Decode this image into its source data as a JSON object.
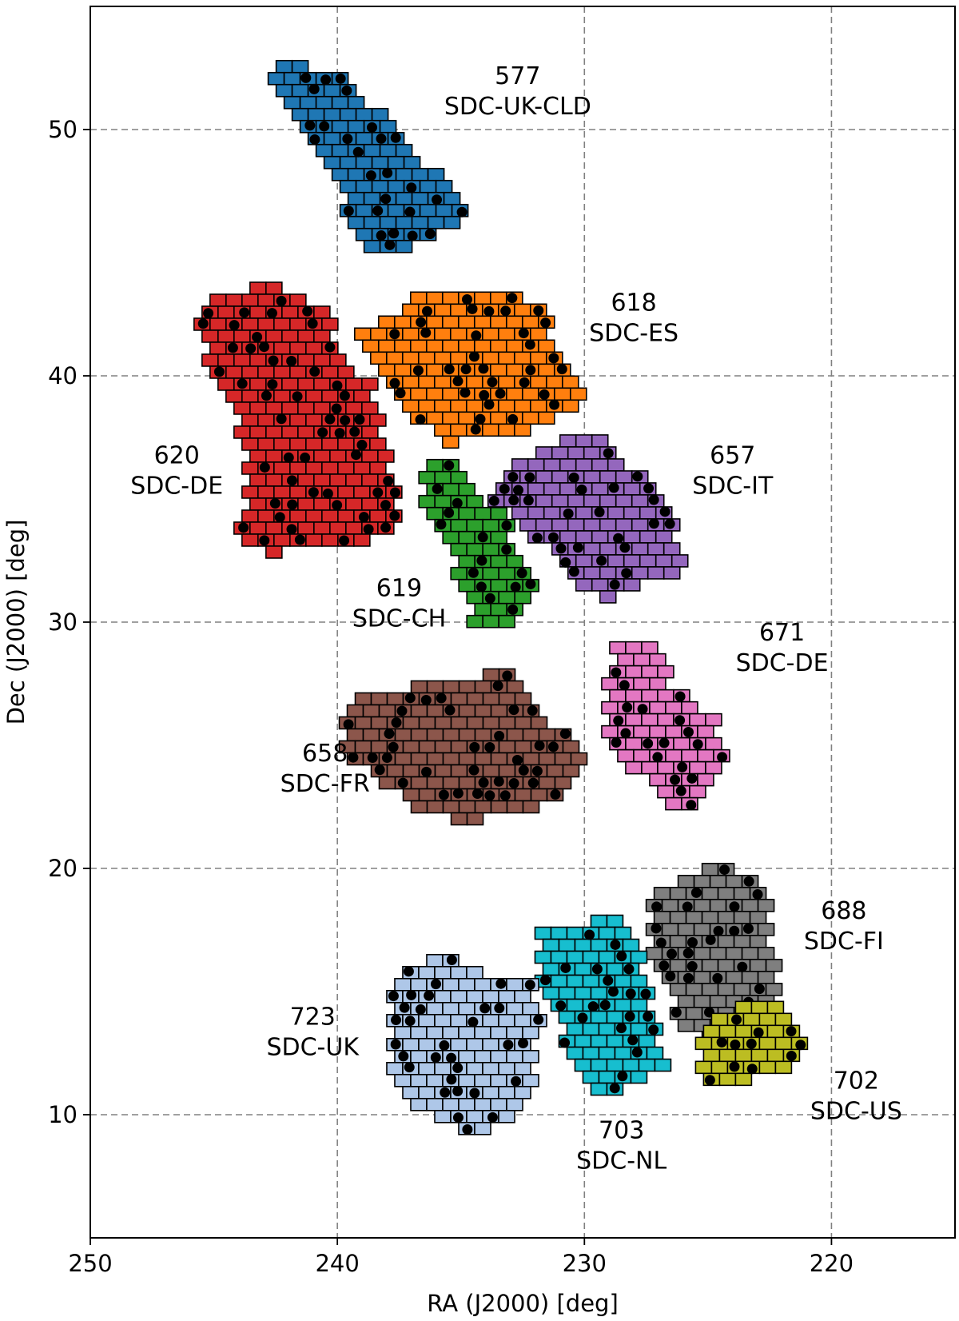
{
  "chart_data": {
    "type": "scatter",
    "title": "",
    "xlabel": "RA (J2000) [deg]",
    "ylabel": "Dec (J2000) [deg]",
    "xlim": [
      250,
      215
    ],
    "ylim": [
      5,
      55
    ],
    "x_inverted": true,
    "grid": true,
    "x_ticks": [
      {
        "value": 250,
        "label": "250"
      },
      {
        "value": 240,
        "label": "240"
      },
      {
        "value": 230,
        "label": "230"
      },
      {
        "value": 220,
        "label": "220"
      }
    ],
    "y_ticks": [
      {
        "value": 10,
        "label": "10"
      },
      {
        "value": 20,
        "label": "20"
      },
      {
        "value": 30,
        "label": "30"
      },
      {
        "value": 40,
        "label": "40"
      },
      {
        "value": 50,
        "label": "50"
      }
    ],
    "regions": [
      {
        "id": "577",
        "site": "SDC-UK-CLD",
        "color": "#1f77b4",
        "polygon": [
          [
            242.4,
            52.8
          ],
          [
            239.8,
            52.2
          ],
          [
            238.0,
            50.5
          ],
          [
            236.5,
            48.5
          ],
          [
            234.8,
            47.5
          ],
          [
            234.8,
            46.5
          ],
          [
            236.0,
            45.5
          ],
          [
            238.5,
            45.0
          ],
          [
            239.5,
            46.5
          ],
          [
            240.5,
            48.5
          ],
          [
            241.5,
            50.0
          ],
          [
            242.8,
            51.5
          ]
        ],
        "label_x": 232.7,
        "label_y": 51.2
      },
      {
        "id": "618",
        "site": "SDC-ES",
        "color": "#ff7f0e",
        "polygon": [
          [
            236.5,
            43.3
          ],
          [
            233.0,
            43.4
          ],
          [
            231.5,
            42.5
          ],
          [
            231.0,
            40.5
          ],
          [
            229.8,
            39.5
          ],
          [
            230.5,
            38.5
          ],
          [
            232.5,
            37.5
          ],
          [
            235.5,
            37.3
          ],
          [
            237.2,
            38.5
          ],
          [
            238.4,
            40.2
          ],
          [
            239.3,
            41.6
          ],
          [
            238.0,
            42.5
          ]
        ],
        "label_x": 228.0,
        "label_y": 42.0
      },
      {
        "id": "620",
        "site": "SDC-DE",
        "color": "#d62728",
        "polygon": [
          [
            245.8,
            42.8
          ],
          [
            242.9,
            43.8
          ],
          [
            240.5,
            42.9
          ],
          [
            240.0,
            41.2
          ],
          [
            238.5,
            39.6
          ],
          [
            238.0,
            37.5
          ],
          [
            237.5,
            34.6
          ],
          [
            238.2,
            33.5
          ],
          [
            240.5,
            33.0
          ],
          [
            242.5,
            32.8
          ],
          [
            244.0,
            33.5
          ],
          [
            243.5,
            36.0
          ],
          [
            244.2,
            38.5
          ],
          [
            245.3,
            40.5
          ]
        ],
        "label_x": 246.5,
        "label_y": 35.8
      },
      {
        "id": "619",
        "site": "SDC-CH",
        "color": "#2ca02c",
        "polygon": [
          [
            236.4,
            36.6
          ],
          [
            235.0,
            36.3
          ],
          [
            234.2,
            35.0
          ],
          [
            233.0,
            34.2
          ],
          [
            232.7,
            32.4
          ],
          [
            232.0,
            31.7
          ],
          [
            232.4,
            30.6
          ],
          [
            232.9,
            29.8
          ],
          [
            234.5,
            29.8
          ],
          [
            235.0,
            31.5
          ],
          [
            235.5,
            33.5
          ],
          [
            236.7,
            35.0
          ]
        ],
        "label_x": 237.5,
        "label_y": 30.4
      },
      {
        "id": "657",
        "site": "SDC-IT",
        "color": "#9467bd",
        "polygon": [
          [
            233.0,
            36.5
          ],
          [
            230.5,
            37.6
          ],
          [
            229.5,
            37.5
          ],
          [
            228.0,
            36.3
          ],
          [
            226.5,
            34.5
          ],
          [
            226.0,
            32.0
          ],
          [
            227.5,
            31.5
          ],
          [
            228.8,
            30.9
          ],
          [
            230.5,
            31.5
          ],
          [
            231.0,
            32.5
          ],
          [
            232.8,
            34.0
          ],
          [
            233.9,
            35.3
          ]
        ],
        "label_x": 224.0,
        "label_y": 35.8
      },
      {
        "id": "671",
        "site": "SDC-DE",
        "color": "#e377c2",
        "polygon": [
          [
            228.9,
            29.2
          ],
          [
            227.5,
            29.2
          ],
          [
            226.2,
            27.2
          ],
          [
            224.8,
            26.2
          ],
          [
            224.0,
            24.5
          ],
          [
            224.7,
            23.3
          ],
          [
            225.5,
            22.5
          ],
          [
            226.5,
            22.4
          ],
          [
            227.5,
            23.5
          ],
          [
            228.5,
            24.5
          ],
          [
            229.3,
            25.5
          ],
          [
            229.0,
            27.5
          ]
        ],
        "label_x": 222.0,
        "label_y": 28.6
      },
      {
        "id": "658",
        "site": "SDC-FR",
        "color": "#8c564b",
        "polygon": [
          [
            236.2,
            27.5
          ],
          [
            233.0,
            28.1
          ],
          [
            232.5,
            27.2
          ],
          [
            231.3,
            26.0
          ],
          [
            230.0,
            24.5
          ],
          [
            230.2,
            23.5
          ],
          [
            232.0,
            22.5
          ],
          [
            235.0,
            21.8
          ],
          [
            236.8,
            22.5
          ],
          [
            238.5,
            23.5
          ],
          [
            239.6,
            24.8
          ],
          [
            239.6,
            26.5
          ],
          [
            238.5,
            27.2
          ]
        ],
        "label_x": 240.5,
        "label_y": 23.7
      },
      {
        "id": "688",
        "site": "SDC-FI",
        "color": "#7f7f7f",
        "polygon": [
          [
            226.0,
            19.7
          ],
          [
            224.3,
            20.2
          ],
          [
            222.8,
            19.6
          ],
          [
            222.5,
            18.0
          ],
          [
            222.3,
            15.8
          ],
          [
            222.2,
            14.0
          ],
          [
            223.5,
            13.8
          ],
          [
            225.0,
            12.9
          ],
          [
            226.3,
            13.5
          ],
          [
            226.5,
            15.5
          ],
          [
            227.5,
            16.8
          ],
          [
            227.3,
            18.8
          ]
        ],
        "label_x": 219.5,
        "label_y": 17.3
      },
      {
        "id": "702",
        "site": "SDC-US",
        "color": "#bcbd22",
        "polygon": [
          [
            223.0,
            14.6
          ],
          [
            221.5,
            14.2
          ],
          [
            221.2,
            12.9
          ],
          [
            221.5,
            11.8
          ],
          [
            223.0,
            11.5
          ],
          [
            224.5,
            11.2
          ],
          [
            225.3,
            11.7
          ],
          [
            225.5,
            13.2
          ],
          [
            224.5,
            14.0
          ]
        ],
        "label_x": 219.0,
        "label_y": 10.4
      },
      {
        "id": "703",
        "site": "SDC-NL",
        "color": "#17becf",
        "polygon": [
          [
            231.7,
            17.7
          ],
          [
            230.0,
            17.8
          ],
          [
            228.5,
            18.1
          ],
          [
            227.6,
            17.0
          ],
          [
            227.6,
            15.8
          ],
          [
            227.1,
            14.0
          ],
          [
            226.8,
            12.0
          ],
          [
            227.8,
            11.5
          ],
          [
            228.5,
            10.8
          ],
          [
            229.8,
            10.8
          ],
          [
            230.8,
            12.5
          ],
          [
            231.2,
            14.5
          ],
          [
            232.0,
            16.0
          ]
        ],
        "label_x": 228.5,
        "label_y": 8.4
      },
      {
        "id": "723",
        "site": "SDC-UK",
        "color": "#aec7e8",
        "polygon": [
          [
            236.0,
            16.5
          ],
          [
            233.5,
            15.5
          ],
          [
            232.0,
            15.3
          ],
          [
            231.8,
            13.5
          ],
          [
            232.0,
            11.5
          ],
          [
            232.3,
            10.5
          ],
          [
            233.0,
            9.7
          ],
          [
            234.5,
            9.3
          ],
          [
            236.5,
            10.0
          ],
          [
            237.4,
            11.0
          ],
          [
            238.0,
            11.8
          ],
          [
            237.9,
            14.0
          ],
          [
            238.0,
            15.3
          ]
        ],
        "label_x": 241.0,
        "label_y": 13.0
      }
    ]
  }
}
